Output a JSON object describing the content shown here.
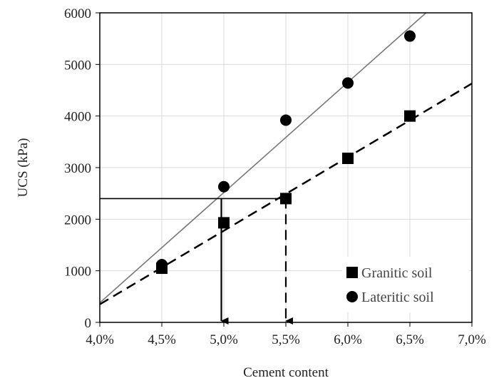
{
  "chart_data": {
    "type": "scatter",
    "xlabel": "Cement content",
    "ylabel": "UCS (kPa)",
    "xlim": [
      4.0,
      7.0
    ],
    "ylim": [
      0,
      6000
    ],
    "x_ticks": [
      {
        "value": 4.0,
        "label": "4,0%"
      },
      {
        "value": 4.5,
        "label": "4,5%"
      },
      {
        "value": 5.0,
        "label": "5,0%"
      },
      {
        "value": 5.5,
        "label": "5,5%"
      },
      {
        "value": 6.0,
        "label": "6,0%"
      },
      {
        "value": 6.5,
        "label": "6,5%"
      },
      {
        "value": 7.0,
        "label": "7,0%"
      }
    ],
    "y_ticks": [
      {
        "value": 0,
        "label": "0"
      },
      {
        "value": 1000,
        "label": "1000"
      },
      {
        "value": 2000,
        "label": "2000"
      },
      {
        "value": 3000,
        "label": "3000"
      },
      {
        "value": 4000,
        "label": "4000"
      },
      {
        "value": 5000,
        "label": "5000"
      },
      {
        "value": 6000,
        "label": "6000"
      }
    ],
    "grid": true,
    "legend_position": "bottom-right",
    "series": [
      {
        "name": "Granitic soil",
        "marker": "square",
        "x": [
          4.5,
          5.0,
          5.5,
          6.0,
          6.5
        ],
        "y": [
          1050,
          1930,
          2400,
          3180,
          4000
        ],
        "trendline": {
          "style": "dashed",
          "color": "#000000",
          "from": [
            4.0,
            350
          ],
          "to": [
            7.0,
            4630
          ]
        }
      },
      {
        "name": "Lateritic soil",
        "marker": "circle",
        "x": [
          4.5,
          5.0,
          5.5,
          6.0,
          6.5
        ],
        "y": [
          1120,
          2630,
          3920,
          4640,
          5550
        ],
        "trendline": {
          "style": "solid",
          "color": "#777777",
          "from": [
            4.0,
            380
          ],
          "to": [
            6.63,
            6000
          ]
        }
      }
    ],
    "annotations": [
      {
        "type": "horizontal-line",
        "y": 2400,
        "x_from": 4.0,
        "x_to": 5.5,
        "style": "solid"
      },
      {
        "type": "arrow-down",
        "x": 4.98,
        "y_from": 2400,
        "y_to": 0,
        "style": "solid"
      },
      {
        "type": "arrow-down",
        "x": 5.5,
        "y_from": 2400,
        "y_to": 0,
        "style": "dashed"
      }
    ]
  },
  "colors": {
    "grid": "#d9d9d9",
    "axis": "#000000",
    "marker": "#000000",
    "lateritic_trend": "#777777"
  }
}
